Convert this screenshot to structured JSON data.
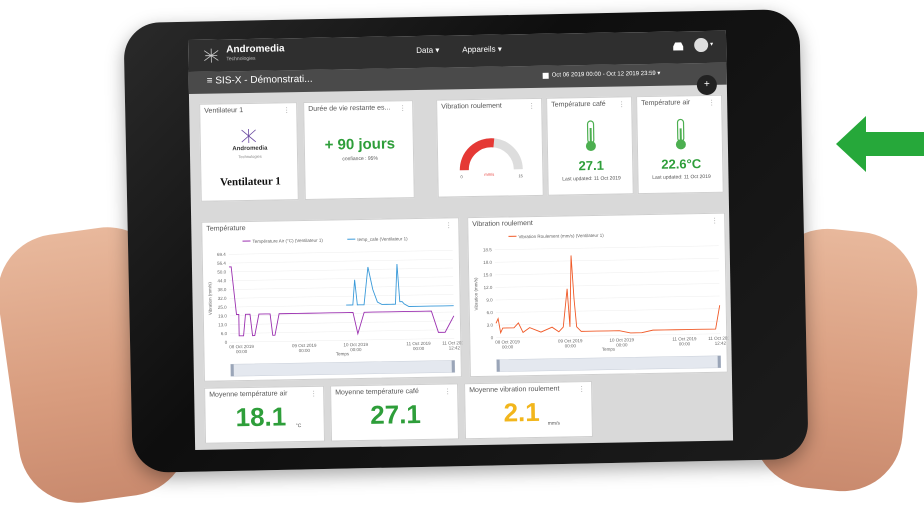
{
  "nav": {
    "brand": "Andromedia",
    "brand_sub": "Technologies",
    "menu_data": "Data ▾",
    "menu_devices": "Appareils ▾",
    "user_menu": "▾"
  },
  "subnav": {
    "title": "≡ SIS-X - Démonstrati...",
    "date_range": "Oct 06 2019 00:00 - Oct 12 2019 23:59 ▾",
    "add": "+"
  },
  "cards": {
    "ventilateur": {
      "title": "Ventilateur 1",
      "logo_text": "Andromedia",
      "logo_sub": "Technologies",
      "label": "Ventilateur 1"
    },
    "duree": {
      "title": "Durée de vie restante es...",
      "value": "+ 90 jours",
      "sub": "confiance : 95%"
    },
    "vibration_gauge": {
      "title": "Vibration roulement",
      "min": "0",
      "max": "15",
      "value": "mm/s"
    },
    "temp_cafe": {
      "title": "Température café",
      "value": "27.1",
      "updated": "Last updated: 11 Oct 2019"
    },
    "temp_air": {
      "title": "Température air",
      "value": "22.6°C",
      "updated": "Last updated: 11 Oct 2019"
    },
    "avg_air": {
      "title": "Moyenne température air",
      "value": "18.1",
      "unit": "°C"
    },
    "avg_cafe": {
      "title": "Moyenne température café",
      "value": "27.1"
    },
    "avg_vib": {
      "title": "Moyenne vibration roulement",
      "value": "2.1",
      "unit": "mm/s"
    }
  },
  "chart_data": [
    {
      "type": "line",
      "title": "Température",
      "series": [
        {
          "name": "Température Air (°C) (Ventilateur 1)",
          "color": "#9b30b0",
          "x": [
            0,
            1,
            3,
            4,
            4,
            6,
            7,
            7,
            9,
            10,
            11,
            13,
            16,
            18,
            19,
            20,
            22,
            25,
            30,
            35,
            40,
            45,
            50,
            55,
            57,
            60,
            62,
            64,
            68,
            72,
            80,
            85,
            90,
            93,
            96,
            100
          ],
          "values": [
            60,
            60,
            22,
            22,
            5,
            5,
            22,
            22,
            22,
            5,
            5,
            22,
            22,
            22,
            5,
            5,
            22,
            22,
            22,
            22,
            22,
            22,
            22,
            22,
            5,
            22,
            22,
            22,
            22,
            22,
            22,
            22,
            22,
            5,
            5,
            18
          ]
        },
        {
          "name": "temp_cafe (Ventilateur 1)",
          "color": "#3a9ad9",
          "x": [
            52,
            54,
            55,
            56,
            57,
            58,
            60,
            62,
            64,
            66,
            68,
            70,
            72,
            73,
            74,
            75,
            76,
            77,
            78,
            80,
            85,
            90,
            95,
            100
          ],
          "values": [
            28,
            28,
            28,
            48,
            28,
            28,
            28,
            58,
            40,
            30,
            28,
            28,
            28,
            28,
            28,
            60,
            30,
            30,
            28,
            26,
            26,
            26,
            26,
            26
          ]
        }
      ],
      "x_ticks": [
        "08 Oct 2019\n00:00",
        "09 Oct 2019\n00:00",
        "10 Oct 2019\n00:00",
        "11 Oct 2019\n00:00",
        "11 Oct 2019\n12:42"
      ],
      "xlabel": "Temps",
      "ylabel": "Vibration (mm/s)",
      "y_ticks": [
        "0",
        "6.0",
        "13.0",
        "19.0",
        "25.0",
        "32.0",
        "38.0",
        "44.0",
        "50.0",
        "56.4",
        "69.4"
      ]
    },
    {
      "type": "line",
      "title": "Vibration roulement",
      "series": [
        {
          "name": "Vibration Roulement (mm/s) (Ventilateur 1)",
          "color": "#f05a28",
          "x": [
            0,
            1,
            2,
            3,
            5,
            8,
            10,
            12,
            15,
            20,
            25,
            28,
            30,
            32,
            33,
            34,
            35,
            36,
            38,
            40,
            45,
            50,
            55,
            60,
            65,
            70,
            75,
            80,
            85,
            90,
            95,
            98,
            100
          ],
          "values": [
            3,
            4,
            1,
            2,
            2,
            2,
            3,
            1,
            2,
            1,
            2,
            1,
            2,
            10,
            2,
            17,
            8,
            2,
            1,
            1,
            1,
            1,
            1,
            0.5,
            0.5,
            1,
            1,
            1,
            1,
            1,
            1,
            1,
            6
          ]
        }
      ],
      "x_ticks": [
        "08 Oct 2019\n00:00",
        "09 Oct 2019\n00:00",
        "10 Oct 2019\n00:00",
        "11 Oct 2019\n00:00",
        "11 Oct 2019\n12:42"
      ],
      "xlabel": "Temps",
      "ylabel": "Vibration (mm/s)",
      "y_ticks": [
        "0",
        "3.0",
        "6.0",
        "9.0",
        "12.0",
        "15.0",
        "18.0",
        "18.5"
      ]
    }
  ]
}
